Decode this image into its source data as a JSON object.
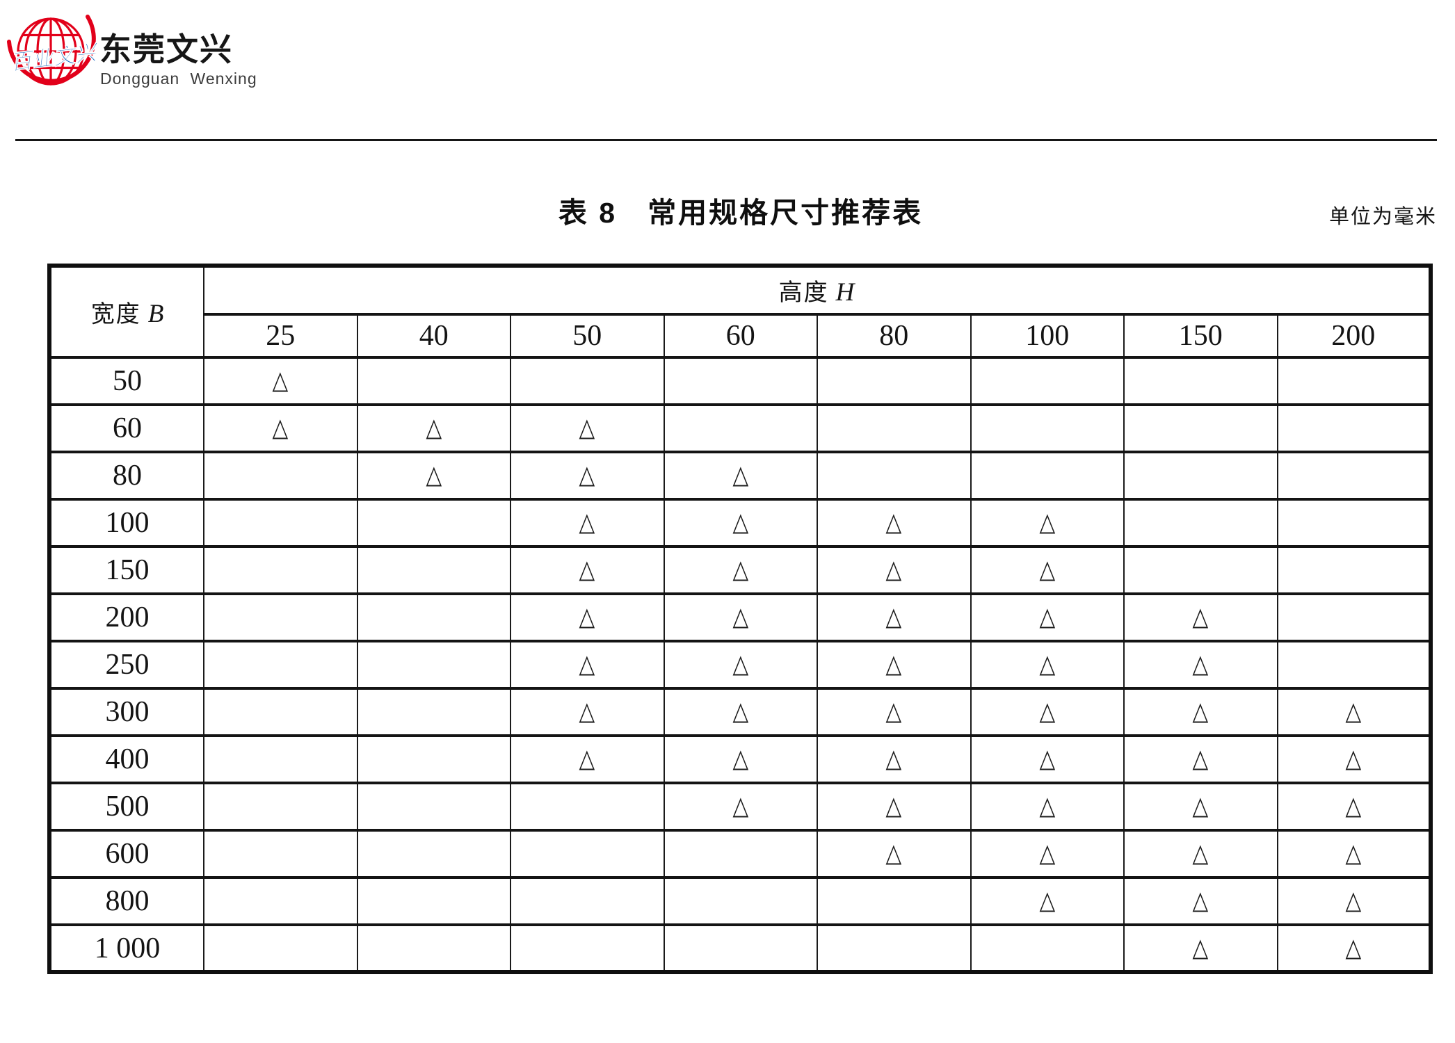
{
  "logo": {
    "company_cn": "东莞文兴",
    "company_en": "Dongguan Wenxing",
    "globe_overlay_text": "百业文兴",
    "globe_color": "#e2001a",
    "overlay_color": "#1a6bc0"
  },
  "page": {
    "table_title": "表 8　常用规格尺寸推荐表",
    "unit_note": "单位为毫米"
  },
  "table": {
    "corner_label_cn": "宽度",
    "corner_label_var": "B",
    "group_label_cn": "高度",
    "group_label_var": "H",
    "marker_glyph": "△",
    "columns": [
      "25",
      "40",
      "50",
      "60",
      "80",
      "100",
      "150",
      "200"
    ],
    "rows": [
      {
        "label": "50",
        "marks": [
          1,
          0,
          0,
          0,
          0,
          0,
          0,
          0
        ]
      },
      {
        "label": "60",
        "marks": [
          1,
          1,
          1,
          0,
          0,
          0,
          0,
          0
        ]
      },
      {
        "label": "80",
        "marks": [
          0,
          1,
          1,
          1,
          0,
          0,
          0,
          0
        ]
      },
      {
        "label": "100",
        "marks": [
          0,
          0,
          1,
          1,
          1,
          1,
          0,
          0
        ]
      },
      {
        "label": "150",
        "marks": [
          0,
          0,
          1,
          1,
          1,
          1,
          0,
          0
        ]
      },
      {
        "label": "200",
        "marks": [
          0,
          0,
          1,
          1,
          1,
          1,
          1,
          0
        ]
      },
      {
        "label": "250",
        "marks": [
          0,
          0,
          1,
          1,
          1,
          1,
          1,
          0
        ]
      },
      {
        "label": "300",
        "marks": [
          0,
          0,
          1,
          1,
          1,
          1,
          1,
          1
        ]
      },
      {
        "label": "400",
        "marks": [
          0,
          0,
          1,
          1,
          1,
          1,
          1,
          1
        ]
      },
      {
        "label": "500",
        "marks": [
          0,
          0,
          0,
          1,
          1,
          1,
          1,
          1
        ]
      },
      {
        "label": "600",
        "marks": [
          0,
          0,
          0,
          0,
          1,
          1,
          1,
          1
        ]
      },
      {
        "label": "800",
        "marks": [
          0,
          0,
          0,
          0,
          0,
          1,
          1,
          1
        ]
      },
      {
        "label": "1 000",
        "marks": [
          0,
          0,
          0,
          0,
          0,
          0,
          1,
          1
        ]
      }
    ]
  }
}
